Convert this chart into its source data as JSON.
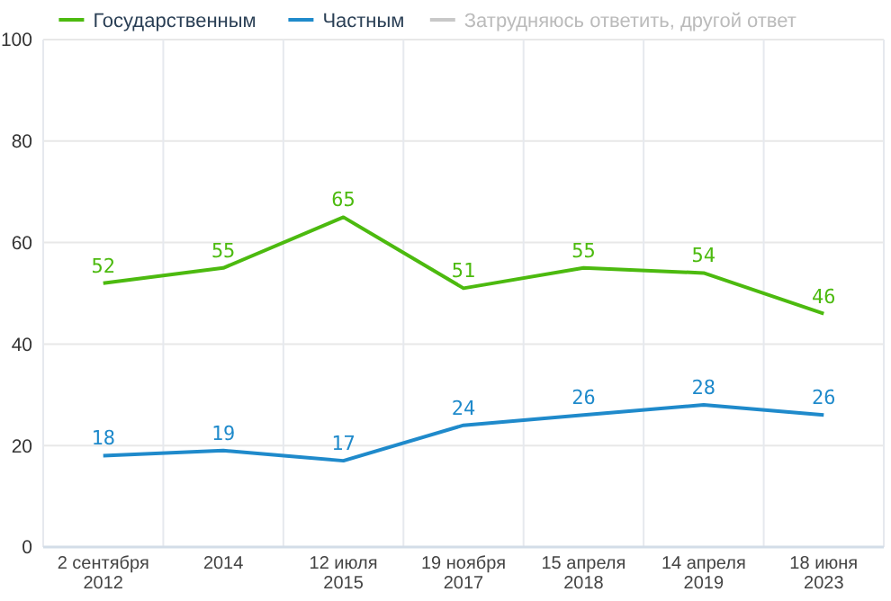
{
  "chart_data": {
    "type": "line",
    "categories": [
      "2 сентября\n2012",
      "2014",
      "12 июля\n2015",
      "19 ноября\n2017",
      "15 апреля\n2018",
      "14 апреля\n2019",
      "18 июня\n2023"
    ],
    "series": [
      {
        "name": "Государственным",
        "color": "#4cba0f",
        "values": [
          52,
          55,
          65,
          51,
          55,
          54,
          46
        ]
      },
      {
        "name": "Частным",
        "color": "#1f8acb",
        "values": [
          18,
          19,
          17,
          24,
          26,
          28,
          26
        ]
      },
      {
        "name": "Затрудняюсь ответить, другой ответ",
        "color": "#c8c8c8",
        "values": [
          null,
          null,
          null,
          null,
          null,
          null,
          null
        ]
      }
    ],
    "ylim": [
      0,
      100
    ],
    "yticks": [
      0,
      20,
      40,
      60,
      80,
      100
    ],
    "grid": true,
    "legend": "top",
    "data_labels": true,
    "marker": "none",
    "line_style": "solid"
  }
}
